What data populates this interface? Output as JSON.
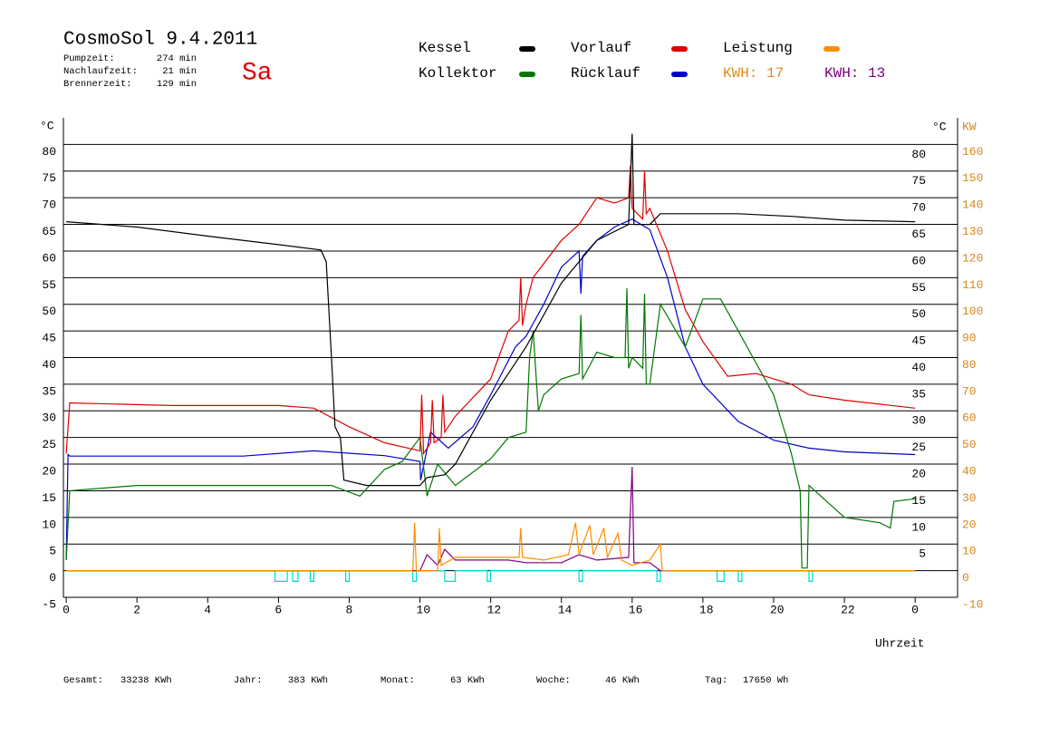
{
  "chart_data": {
    "type": "line",
    "title": "CosmoSol 9.4.2011",
    "day": "Sa",
    "stats": [
      {
        "label": "Pumpzeit:",
        "value": "274 min"
      },
      {
        "label": "Nachlaufzeit:",
        "value": "21 min"
      },
      {
        "label": "Brennerzeit:",
        "value": "129 min"
      }
    ],
    "xlabel": "Uhrzeit",
    "ylabel": "°C",
    "ylabel_right": "°C",
    "y2label": "KW",
    "xlim": [
      -0.08,
      25.2
    ],
    "xticks": [
      0,
      2,
      4,
      6,
      8,
      10,
      12,
      14,
      16,
      18,
      20,
      22,
      {
        "value": 24,
        "label": "0"
      }
    ],
    "ylim": [
      -5,
      85
    ],
    "yticks": [
      -5,
      0,
      5,
      10,
      15,
      20,
      25,
      30,
      35,
      40,
      45,
      50,
      55,
      60,
      65,
      70,
      75,
      80
    ],
    "yticks_right": [
      5,
      10,
      15,
      20,
      25,
      30,
      35,
      40,
      45,
      50,
      55,
      60,
      65,
      70,
      75,
      80
    ],
    "y2lim": [
      -10,
      170
    ],
    "y2ticks": [
      -10,
      0,
      10,
      20,
      30,
      40,
      50,
      60,
      70,
      80,
      90,
      100,
      110,
      120,
      130,
      140,
      150,
      160
    ],
    "y2color": "#d4881e",
    "grid": true,
    "series": [
      {
        "name": "Kessel",
        "color": "#000000",
        "x": [
          0,
          2,
          4,
          6,
          7.2,
          7.35,
          7.5,
          7.6,
          7.75,
          7.85,
          8.5,
          10,
          10.2,
          10.7,
          11,
          12,
          13,
          14,
          15,
          15.9,
          16,
          16.05,
          16.5,
          16.8,
          19,
          20.5,
          22,
          24
        ],
        "values": [
          65.5,
          64.5,
          62.8,
          61.2,
          60.2,
          58,
          40,
          27,
          25,
          17,
          16,
          16,
          17.5,
          18,
          20,
          32,
          42,
          54,
          62,
          65,
          82,
          65,
          65,
          67,
          67,
          66.5,
          65.8,
          65.5
        ]
      },
      {
        "name": "Vorlauf",
        "color": "#e00000",
        "x": [
          0,
          0.1,
          3,
          6,
          7,
          8,
          9,
          10,
          10.05,
          10.1,
          10.3,
          10.35,
          10.4,
          10.6,
          10.65,
          10.7,
          11,
          12,
          12.5,
          12.8,
          12.85,
          12.9,
          13,
          13.2,
          14,
          14.5,
          15,
          15.5,
          15.9,
          15.95,
          16,
          16.3,
          16.35,
          16.4,
          16.5,
          17,
          17.5,
          18,
          18.7,
          19.5,
          20.5,
          21,
          22,
          24
        ],
        "values": [
          22,
          31.5,
          31,
          31,
          30.5,
          27,
          24,
          22.5,
          33,
          22,
          24,
          32,
          24,
          25,
          33,
          26,
          29,
          36,
          45,
          47,
          55,
          46,
          50,
          55,
          62,
          65,
          70,
          69,
          70,
          76,
          68,
          66,
          75,
          67,
          68,
          60,
          49,
          43,
          36.5,
          37,
          35,
          33,
          32,
          30.5
        ]
      },
      {
        "name": "Leistung",
        "color": "#ff8c00",
        "axis": "y2",
        "x": [
          0,
          9.8,
          9.85,
          9.9,
          10.5,
          10.55,
          10.6,
          11,
          12,
          12.8,
          12.85,
          12.9,
          13.5,
          14.2,
          14.4,
          14.5,
          14.8,
          14.9,
          15.2,
          15.3,
          15.6,
          15.7,
          16,
          16.5,
          16.8,
          16.85,
          24
        ],
        "values": [
          0,
          0,
          18,
          0,
          0,
          16,
          2,
          5,
          5,
          5,
          16,
          5,
          4,
          6,
          18,
          6,
          17,
          6,
          16,
          5,
          14,
          4,
          2,
          4,
          10,
          0,
          0
        ]
      },
      {
        "name": "Kollektor",
        "color": "#007800",
        "x": [
          0,
          0.1,
          2,
          5,
          7,
          7.5,
          8.3,
          9,
          9.5,
          10,
          10.2,
          10.5,
          11,
          12,
          12.5,
          13,
          13.1,
          13.2,
          13.35,
          13.5,
          14,
          14.5,
          14.55,
          14.6,
          15,
          15.5,
          15.8,
          15.85,
          15.9,
          16,
          16.3,
          16.35,
          16.4,
          16.5,
          16.8,
          17.5,
          18,
          18.5,
          19,
          20,
          20.5,
          20.75,
          20.8,
          20.95,
          21,
          22,
          23,
          23.3,
          23.4,
          24
        ],
        "values": [
          2,
          15,
          16,
          16,
          16,
          16,
          14,
          19,
          20.5,
          25,
          14,
          20,
          16,
          21,
          25,
          26,
          40,
          45,
          30,
          33,
          36,
          37,
          48,
          36,
          41,
          40,
          40,
          53,
          38,
          40,
          38,
          52,
          35,
          35,
          50,
          42,
          51,
          51,
          45,
          33,
          22,
          15,
          0.5,
          0.5,
          16,
          10,
          9,
          8,
          13,
          13.5
        ]
      },
      {
        "name": "Rücklauf",
        "color": "#0000d0",
        "x": [
          0,
          0.05,
          0.1,
          5,
          7,
          9,
          10,
          10.02,
          10.3,
          10.8,
          11.5,
          12,
          12.7,
          13,
          13.5,
          14,
          14.5,
          14.55,
          14.6,
          15,
          15.5,
          16,
          16.5,
          17,
          17.5,
          18,
          19,
          20,
          21,
          22,
          24
        ],
        "values": [
          2,
          21.8,
          21.5,
          21.5,
          22.5,
          21.6,
          20.5,
          17,
          26,
          23,
          27,
          33,
          42,
          44,
          50,
          57,
          60,
          52,
          59,
          62,
          64.5,
          66,
          64,
          55,
          42,
          35,
          28,
          24.5,
          23,
          22.3,
          21.8
        ]
      },
      {
        "color": "#800080",
        "axis": "y2",
        "x": [
          0,
          10,
          10.2,
          10.5,
          10.7,
          11,
          12.5,
          13,
          14,
          14.5,
          15,
          15.9,
          16,
          16.05,
          16.5,
          16.8,
          24
        ],
        "values": [
          0,
          0,
          6,
          2,
          8,
          4,
          4,
          3,
          3,
          6,
          4,
          5,
          39,
          3,
          3,
          0,
          0
        ]
      },
      {
        "color": "#00d8d8",
        "x": [
          0,
          5.9,
          5.9,
          6.25,
          6.25,
          6.4,
          6.4,
          6.55,
          6.55,
          6.9,
          6.9,
          7.0,
          7.0,
          7.9,
          7.9,
          8.0,
          8.0,
          9.8,
          9.8,
          9.9,
          9.9,
          10.7,
          10.7,
          11.0,
          11.0,
          11.9,
          11.9,
          12.0,
          12.0,
          14.5,
          14.5,
          14.6,
          14.6,
          16.7,
          16.7,
          16.8,
          16.8,
          18.4,
          18.4,
          18.6,
          18.6,
          19.0,
          19.0,
          19.1,
          19.1,
          21.0,
          21.0,
          21.1,
          21.1,
          24
        ],
        "values": [
          0,
          0,
          -2,
          -2,
          0,
          0,
          -2,
          -2,
          0,
          0,
          -2,
          -2,
          0,
          0,
          -2,
          -2,
          0,
          0,
          -2,
          -2,
          0,
          0,
          -2,
          -2,
          0,
          0,
          -2,
          -2,
          0,
          0,
          -2,
          -2,
          0,
          0,
          -2,
          -2,
          0,
          0,
          -2,
          -2,
          0,
          0,
          -2,
          -2,
          0,
          0,
          -2,
          -2,
          0,
          0
        ]
      }
    ],
    "energy_labels": [
      {
        "text": "KWH: 17",
        "color": "#e08a1e"
      },
      {
        "text": "KWH: 13",
        "color": "#800080"
      }
    ],
    "totals": [
      {
        "label": "Gesamt:",
        "value": "33238 KWh"
      },
      {
        "label": "Jahr:",
        "value": "383 KWh"
      },
      {
        "label": "Monat:",
        "value": "63 KWh"
      },
      {
        "label": "Woche:",
        "value": "46 KWh"
      },
      {
        "label": "Tag:",
        "value": "17650 Wh"
      }
    ]
  }
}
